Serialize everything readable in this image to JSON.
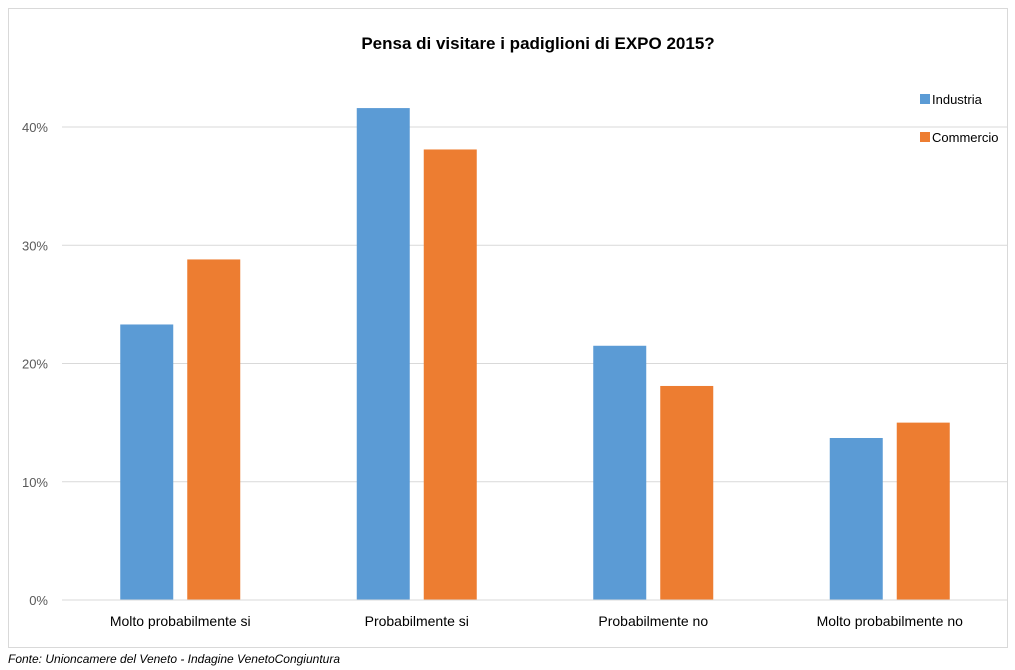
{
  "chart_data": {
    "type": "bar",
    "title": "Pensa di visitare i padiglioni di EXPO 2015?",
    "categories": [
      "Molto probabilmente si",
      "Probabilmente si",
      "Probabilmente no",
      "Molto probabilmente no"
    ],
    "series": [
      {
        "name": "Industria",
        "color": "#5b9bd5",
        "values": [
          23.3,
          41.6,
          21.5,
          13.7
        ]
      },
      {
        "name": "Commercio",
        "color": "#ed7d31",
        "values": [
          28.8,
          38.1,
          18.1,
          15.0
        ]
      }
    ],
    "ylim": [
      0,
      40
    ],
    "yticks": [
      0,
      10,
      20,
      30,
      40
    ],
    "ytick_labels": [
      "0%",
      "10%",
      "20%",
      "30%",
      "40%"
    ],
    "y_unit": "%",
    "grid": true,
    "legend_position": "top-right",
    "xlabel": "",
    "ylabel": ""
  },
  "source_note": "Fonte: Unioncamere del Veneto - Indagine VenetoCongiuntura"
}
